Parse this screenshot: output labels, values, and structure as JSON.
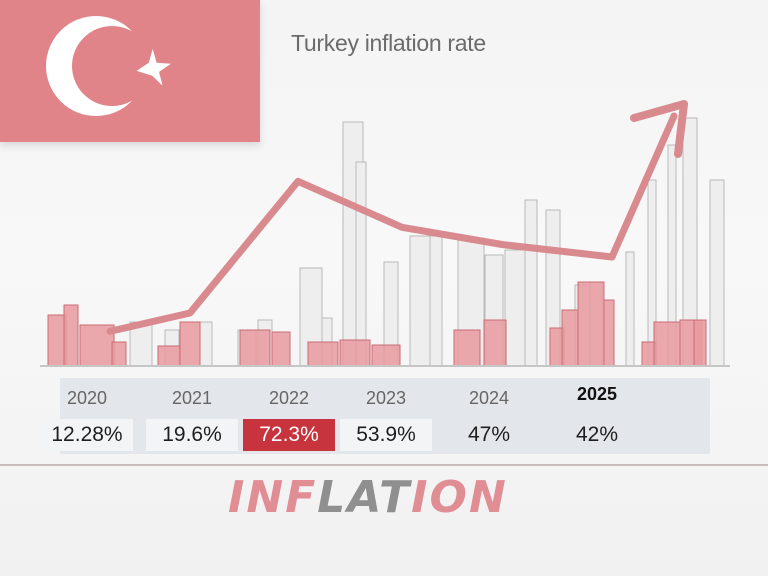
{
  "title": "Turkey inflation rate",
  "banner_word": "INFLATION",
  "colors": {
    "flag_red": "#e1848a",
    "highlight_red": "#c7343e",
    "line": "#d98a8f",
    "bar_fill": "#e79aa0",
    "building_fill": "#eeeeee"
  },
  "flag": {
    "emblem": "crescent-and-star-icon"
  },
  "chart_data": {
    "type": "line",
    "title": "Turkey inflation rate",
    "categories": [
      "2020",
      "2021",
      "2022",
      "2023",
      "2024",
      "2025"
    ],
    "series": [
      {
        "values": [
          12.28,
          19.6,
          72.3,
          53.9,
          47,
          42
        ]
      }
    ],
    "labels": [
      "12.28%",
      "19.6%",
      "72.3%",
      "53.9%",
      "47%",
      "42%"
    ],
    "highlight_index": 2,
    "emphasized_year_index": 5,
    "trend_arrow": "up",
    "grid": false,
    "legend": "none"
  }
}
